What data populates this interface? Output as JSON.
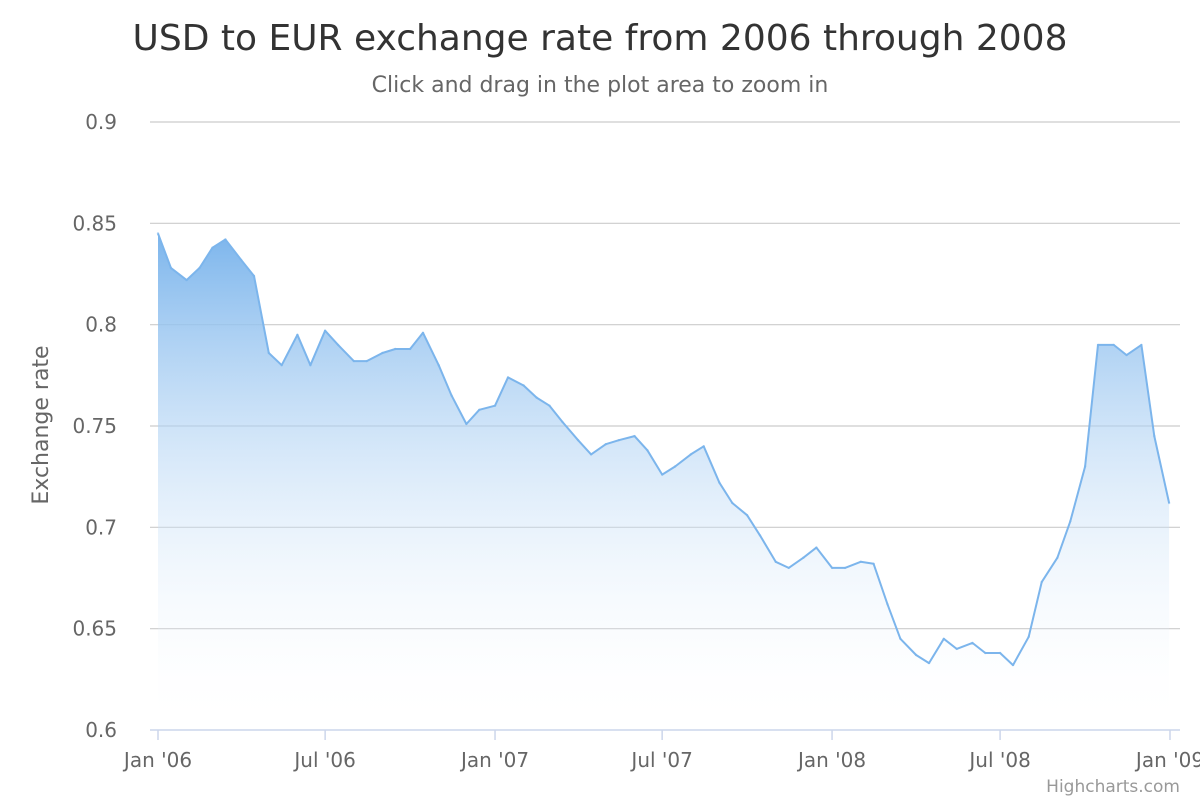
{
  "chart_data": {
    "type": "area",
    "title": "USD to EUR exchange rate from 2006 through 2008",
    "subtitle": "Click and drag in the plot area to zoom in",
    "ylabel": "Exchange rate",
    "xlabel": "",
    "ylim": [
      0.6,
      0.9
    ],
    "y_ticks": [
      0.6,
      0.65,
      0.7,
      0.75,
      0.8,
      0.85,
      0.9
    ],
    "y_tick_labels": [
      "0.6",
      "0.65",
      "0.7",
      "0.75",
      "0.8",
      "0.85",
      "0.9"
    ],
    "xlim": [
      "2006-01-01",
      "2009-01-01"
    ],
    "x_ticks": [
      "2006-01-01",
      "2006-07-01",
      "2007-01-01",
      "2007-07-01",
      "2008-01-01",
      "2008-07-01",
      "2009-01-01"
    ],
    "x_tick_labels": [
      "Jan '06",
      "Jul '06",
      "Jan '07",
      "Jul '07",
      "Jan '08",
      "Jul '08",
      "Jan '09"
    ],
    "grid": "horizontal",
    "legend": "none",
    "colors": {
      "line": "#7cb5ec",
      "fill_top": "#7cb5ec",
      "fill_bottom": "#ffffff",
      "grid": "#cccccc",
      "axis": "#ccd6eb"
    },
    "series": [
      {
        "x": [
          "2006-01-01",
          "2006-01-15",
          "2006-02-01",
          "2006-02-15",
          "2006-03-01",
          "2006-03-15",
          "2006-04-01",
          "2006-04-15",
          "2006-05-01",
          "2006-05-15",
          "2006-06-01",
          "2006-06-15",
          "2006-07-01",
          "2006-07-15",
          "2006-08-01",
          "2006-08-15",
          "2006-09-01",
          "2006-09-15",
          "2006-10-01",
          "2006-10-15",
          "2006-11-01",
          "2006-11-15",
          "2006-12-01",
          "2006-12-15",
          "2007-01-01",
          "2007-01-15",
          "2007-02-01",
          "2007-02-15",
          "2007-03-01",
          "2007-03-15",
          "2007-04-01",
          "2007-04-15",
          "2007-05-01",
          "2007-05-15",
          "2007-06-01",
          "2007-06-15",
          "2007-07-01",
          "2007-07-15",
          "2007-08-01",
          "2007-08-15",
          "2007-09-01",
          "2007-09-15",
          "2007-10-01",
          "2007-10-15",
          "2007-11-01",
          "2007-11-15",
          "2007-12-01",
          "2007-12-15",
          "2008-01-01",
          "2008-01-15",
          "2008-02-01",
          "2008-02-15",
          "2008-03-01",
          "2008-03-15",
          "2008-04-01",
          "2008-04-15",
          "2008-05-01",
          "2008-05-15",
          "2008-06-01",
          "2008-06-15",
          "2008-07-01",
          "2008-07-15",
          "2008-08-01",
          "2008-08-15",
          "2008-09-01",
          "2008-09-15",
          "2008-10-01",
          "2008-10-15",
          "2008-11-01",
          "2008-11-15",
          "2008-12-01",
          "2008-12-15",
          "2008-12-31"
        ],
        "values": [
          0.845,
          0.828,
          0.822,
          0.828,
          0.838,
          0.842,
          0.832,
          0.824,
          0.786,
          0.78,
          0.795,
          0.78,
          0.797,
          0.79,
          0.782,
          0.782,
          0.786,
          0.788,
          0.788,
          0.796,
          0.78,
          0.765,
          0.751,
          0.758,
          0.76,
          0.774,
          0.77,
          0.764,
          0.76,
          0.752,
          0.743,
          0.736,
          0.741,
          0.743,
          0.745,
          0.738,
          0.726,
          0.73,
          0.736,
          0.74,
          0.722,
          0.712,
          0.706,
          0.696,
          0.683,
          0.68,
          0.685,
          0.69,
          0.68,
          0.68,
          0.683,
          0.682,
          0.662,
          0.645,
          0.637,
          0.633,
          0.645,
          0.64,
          0.643,
          0.638,
          0.638,
          0.632,
          0.646,
          0.673,
          0.685,
          0.703,
          0.73,
          0.79,
          0.79,
          0.785,
          0.79,
          0.745,
          0.712
        ]
      }
    ]
  },
  "credit": "Highcharts.com"
}
